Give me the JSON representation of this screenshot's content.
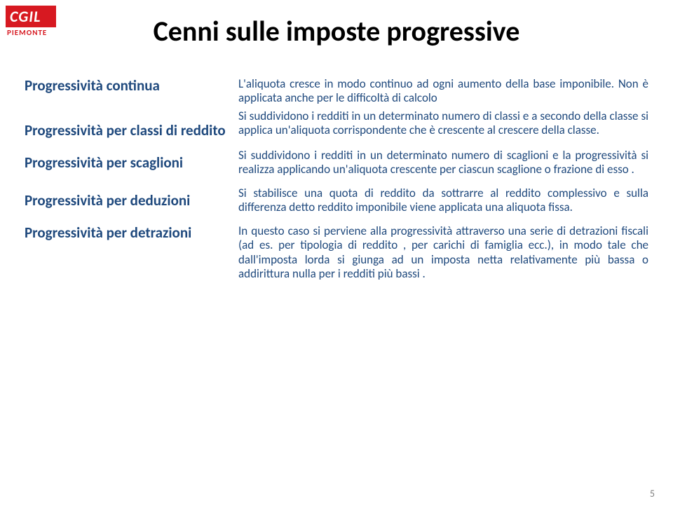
{
  "logo": {
    "top": "CGIL",
    "bottom": "PIEMONTE"
  },
  "title": "Cenni sulle imposte progressive",
  "rows": [
    {
      "heading": "Progressività continua",
      "body": "L'aliquota cresce in modo continuo ad ogni aumento della base imponibile. Non è applicata anche per le difficoltà di calcolo"
    },
    {
      "heading": "Progressività per classi di reddito",
      "body": "Si suddividono i redditi in un determinato numero di classi e a secondo della classe si applica un'aliquota corrispondente che è crescente al crescere della classe."
    },
    {
      "heading": "Progressività per scaglioni",
      "body": "Si suddividono i redditi in un determinato numero di scaglioni e la progressività si realizza applicando un'aliquota crescente per ciascun scaglione o frazione di esso ."
    },
    {
      "heading": "Progressività per deduzioni",
      "body": "Si stabilisce una quota di reddito da sottrarre al reddito complessivo e sulla differenza detto reddito imponibile viene applicata una aliquota fissa."
    },
    {
      "heading": "Progressività per detrazioni",
      "body": "In questo caso si perviene alla progressività attraverso una serie di detrazioni fiscali (ad es. per tipologia di reddito , per carichi di famiglia ecc.), in modo tale che dall'imposta lorda si giunga ad un imposta netta relativamente più bassa o addirittura nulla per i redditi più bassi ."
    }
  ],
  "pageNumber": "5"
}
